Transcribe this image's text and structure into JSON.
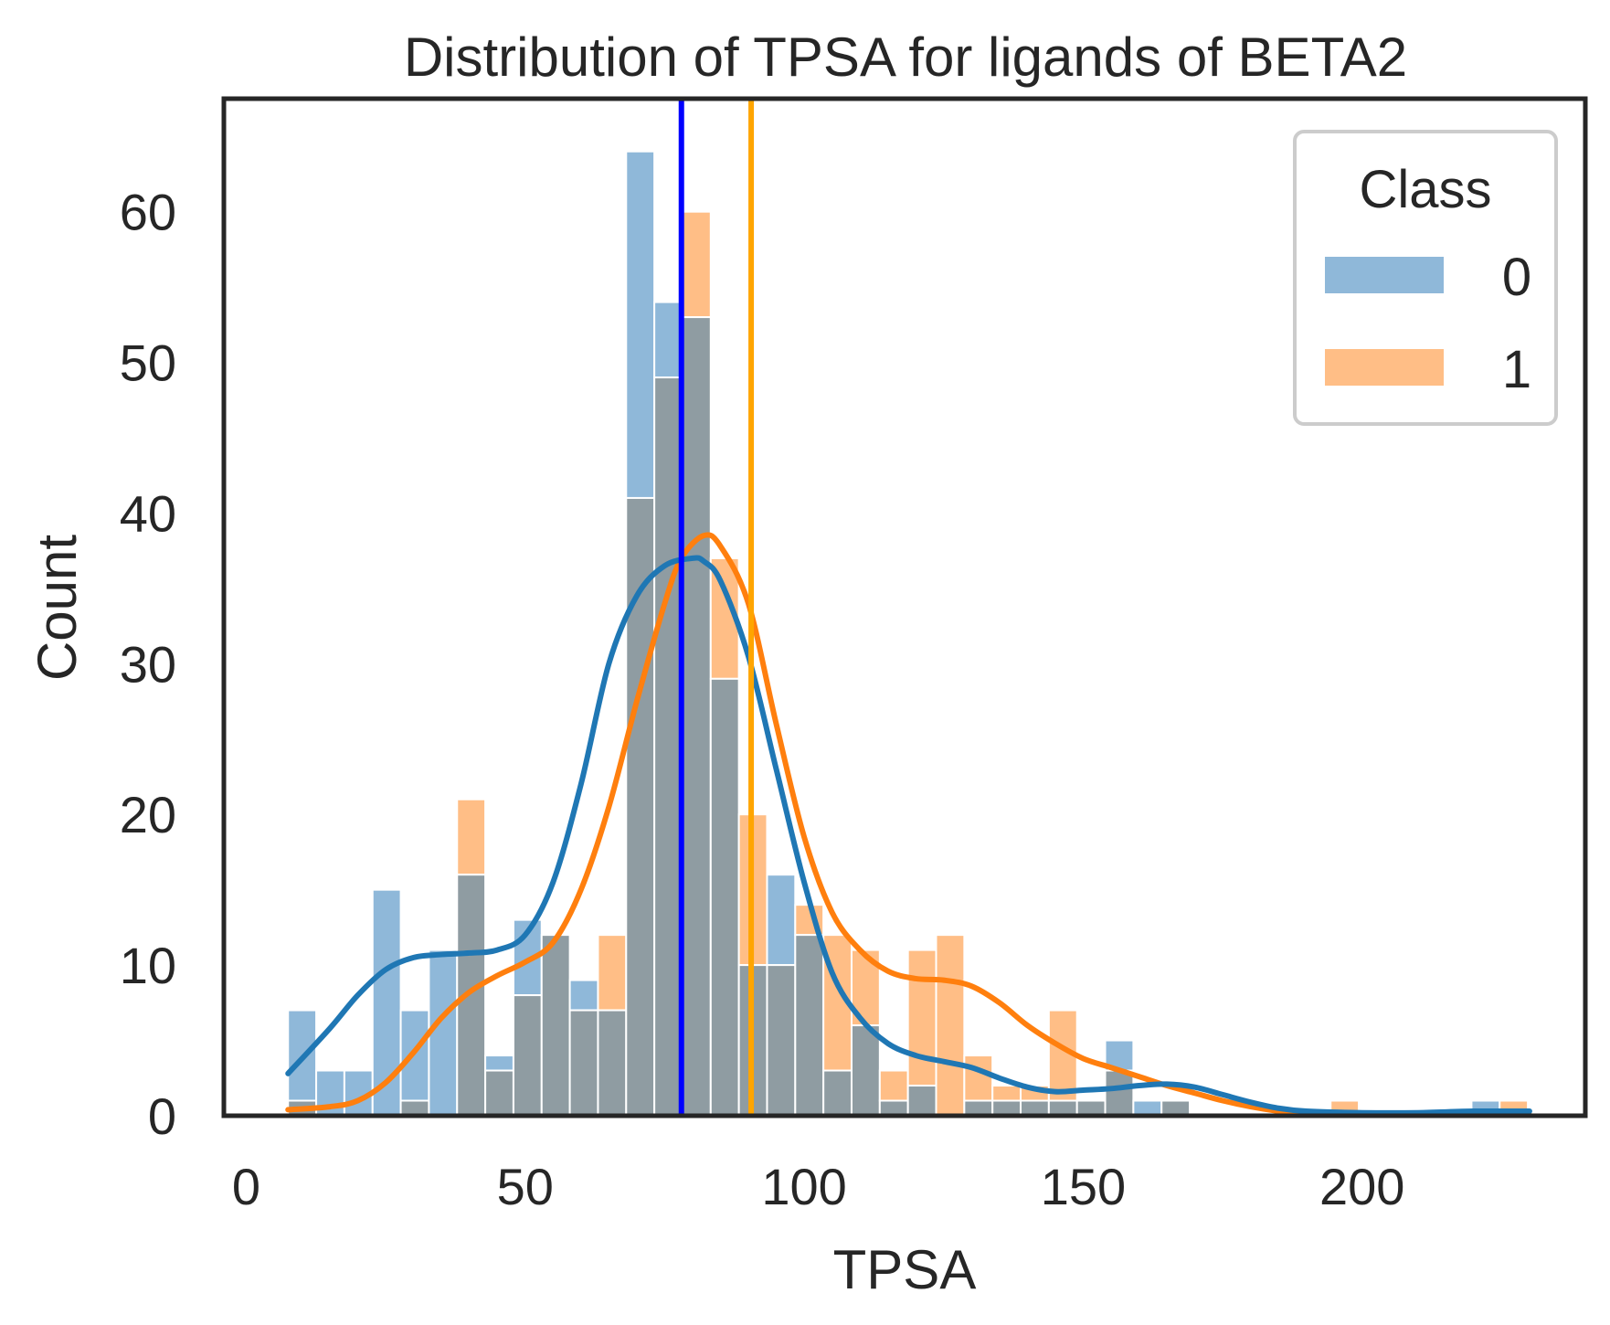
{
  "chart_data": {
    "type": "histogram",
    "title": "Distribution of TPSA for ligands of BETA2",
    "xlabel": "TPSA",
    "ylabel": "Count",
    "xlim": [
      -4,
      240
    ],
    "ylim": [
      0,
      67.5
    ],
    "xticks": [
      0,
      50,
      100,
      150,
      200
    ],
    "yticks": [
      0,
      10,
      20,
      30,
      40,
      50,
      60
    ],
    "grid": false,
    "legend": {
      "title": "Class",
      "location": "top-right",
      "entries": [
        "0",
        "1"
      ]
    },
    "bin_start": 7.5,
    "bin_width": 5.05,
    "bin_count": 44,
    "colors": {
      "class0_fill": "#8fb8d9",
      "class1_fill": "#ffbe86",
      "overlap_fill": "#8f9ca2",
      "class0_line": "#1f77b4",
      "class1_line": "#ff7f0e",
      "median0_line": "#0000ff",
      "median1_line": "#ffa500"
    },
    "series": [
      {
        "name": "0",
        "counts": [
          7,
          3,
          3,
          15,
          7,
          11,
          16,
          4,
          13,
          12,
          9,
          7,
          64,
          54,
          53,
          29,
          10,
          16,
          12,
          3,
          6,
          1,
          2,
          0,
          1,
          1,
          1,
          1,
          1,
          5,
          1,
          1,
          0,
          0,
          0,
          0,
          0,
          0,
          0,
          0,
          0,
          0,
          1,
          0
        ]
      },
      {
        "name": "1",
        "counts": [
          1,
          0,
          0,
          0,
          1,
          0,
          21,
          3,
          8,
          12,
          7,
          12,
          41,
          49,
          60,
          37,
          20,
          10,
          14,
          12,
          11,
          3,
          11,
          12,
          4,
          2,
          2,
          7,
          1,
          3,
          0,
          1,
          0,
          0,
          0,
          0,
          0,
          1,
          0,
          0,
          0,
          0,
          0,
          1
        ]
      }
    ],
    "kde": [
      {
        "name": "0",
        "x": [
          7.5,
          15,
          20,
          25,
          30,
          35,
          40,
          45,
          50,
          55,
          60,
          65,
          70,
          75,
          80,
          82,
          85,
          90,
          95,
          100,
          105,
          110,
          115,
          120,
          125,
          130,
          135,
          140,
          145,
          150,
          155,
          160,
          165,
          170,
          175,
          180,
          185,
          190,
          200,
          210,
          220,
          230
        ],
        "y": [
          2.8,
          5.8,
          8.0,
          9.7,
          10.5,
          10.7,
          10.8,
          11.0,
          12.0,
          15.5,
          22.0,
          30.0,
          34.5,
          36.5,
          37.0,
          36.8,
          35.5,
          30.5,
          23.0,
          15.5,
          9.5,
          6.5,
          4.8,
          4.0,
          3.6,
          3.2,
          2.5,
          1.9,
          1.6,
          1.7,
          1.8,
          2.0,
          2.1,
          1.9,
          1.4,
          0.9,
          0.5,
          0.3,
          0.2,
          0.2,
          0.3,
          0.3
        ]
      },
      {
        "name": "1",
        "x": [
          7.5,
          15,
          20,
          25,
          30,
          35,
          40,
          45,
          50,
          55,
          60,
          65,
          70,
          75,
          78,
          82,
          85,
          90,
          95,
          100,
          105,
          110,
          115,
          120,
          125,
          130,
          135,
          140,
          145,
          150,
          155,
          160,
          165,
          170,
          175,
          180,
          185,
          190,
          200,
          210,
          220,
          230
        ],
        "y": [
          0.4,
          0.6,
          1.0,
          2.2,
          4.2,
          6.5,
          8.2,
          9.3,
          10.2,
          11.5,
          15.0,
          20.5,
          27.5,
          34.0,
          37.0,
          38.5,
          37.8,
          34.0,
          26.0,
          18.5,
          13.5,
          11.0,
          9.6,
          9.1,
          9.0,
          8.6,
          7.5,
          6.0,
          4.8,
          3.8,
          3.2,
          2.6,
          2.0,
          1.5,
          1.0,
          0.6,
          0.3,
          0.1,
          0.05,
          0.05,
          0.05,
          0.05
        ]
      }
    ],
    "medians": [
      {
        "name": "0",
        "x": 78.0
      },
      {
        "name": "1",
        "x": 90.5
      }
    ]
  }
}
